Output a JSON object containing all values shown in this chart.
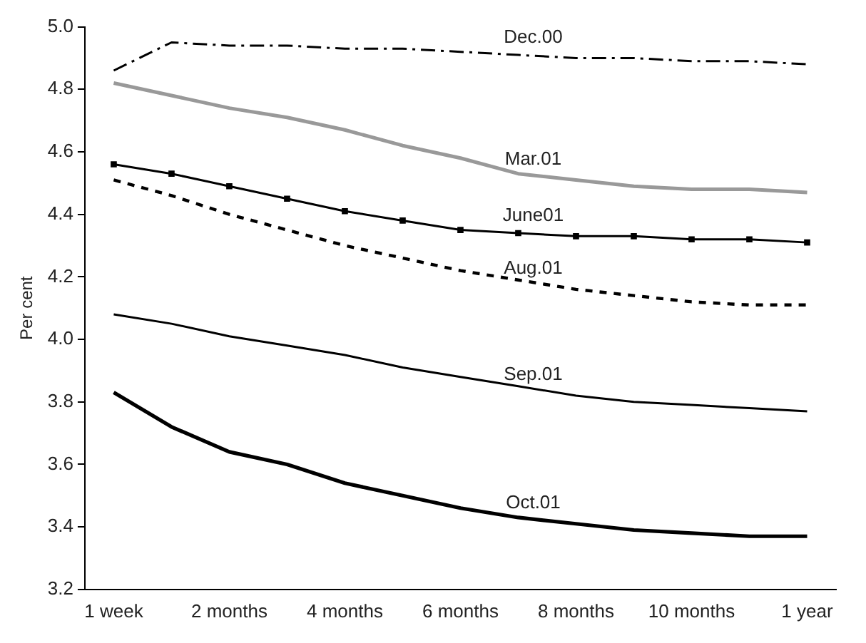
{
  "chart_data": {
    "type": "line",
    "ylabel": "Per cent",
    "categories": [
      "1 week",
      null,
      "2 months",
      null,
      "4 months",
      null,
      "6 months",
      null,
      "8 months",
      null,
      "10 months",
      null,
      "1 year"
    ],
    "ylim": [
      3.2,
      5.0
    ],
    "yticks": [
      3.2,
      3.4,
      3.6,
      3.8,
      {
        "value": 4,
        "label": "4.0"
      },
      4.2,
      4.4,
      4.6,
      4.8,
      {
        "value": 5,
        "label": "5.0"
      }
    ],
    "grid": false,
    "legend": false,
    "series": [
      {
        "name": "Dec.00",
        "color": "#000000",
        "line_style": "dashed",
        "values": [
          4.86,
          4.95,
          4.94,
          4.94,
          4.93,
          4.93,
          4.92,
          4.91,
          4.9,
          4.9,
          4.89,
          4.89,
          4.88
        ]
      },
      {
        "name": "Mar.01",
        "color": "#999999",
        "values": [
          4.82,
          4.78,
          4.74,
          4.71,
          4.67,
          4.62,
          4.58,
          4.53,
          4.51,
          4.49,
          4.48,
          4.48,
          4.47
        ]
      },
      {
        "name": "June01",
        "color": "#000000",
        "marker": "square",
        "values": [
          4.56,
          4.53,
          4.49,
          4.45,
          4.41,
          4.38,
          4.35,
          4.34,
          4.33,
          4.33,
          4.32,
          4.32,
          4.31
        ]
      },
      {
        "name": "Aug.01",
        "color": "#000000",
        "line_style": "dotted",
        "values": [
          4.51,
          4.46,
          4.4,
          4.35,
          4.3,
          4.26,
          4.22,
          4.19,
          4.16,
          4.14,
          4.12,
          4.11,
          4.11
        ]
      },
      {
        "name": "Sep.01",
        "color": "#000000",
        "values": [
          4.08,
          4.05,
          4.01,
          3.98,
          3.95,
          3.91,
          3.88,
          3.85,
          3.82,
          3.8,
          3.79,
          3.78,
          3.77
        ]
      },
      {
        "name": "Oct.01",
        "color": "#000000",
        "values": [
          3.83,
          3.72,
          3.64,
          3.6,
          3.54,
          3.5,
          3.46,
          3.43,
          3.41,
          3.39,
          3.38,
          3.37,
          3.37
        ]
      }
    ]
  }
}
